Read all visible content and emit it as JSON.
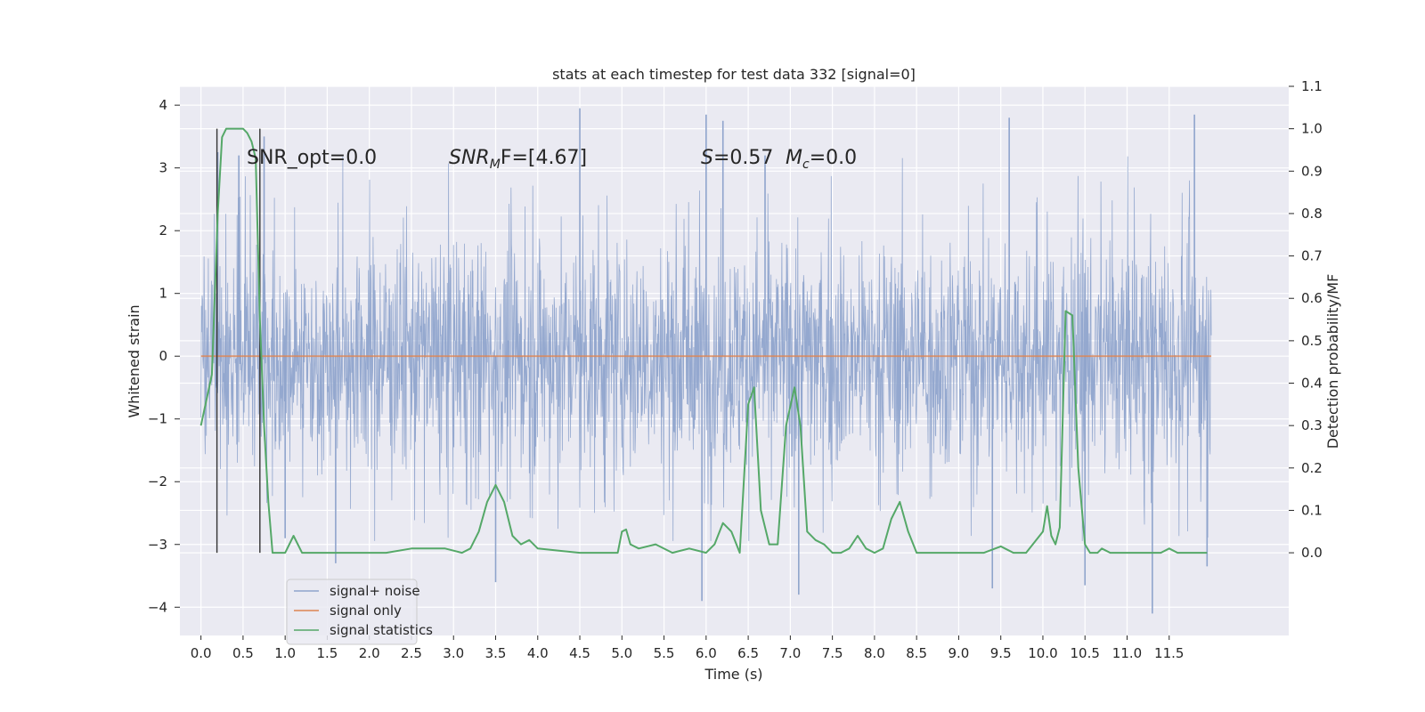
{
  "chart_data": {
    "type": "line",
    "title": "stats at each timestep for test data 332 [signal=0]",
    "xlabel": "Time (s)",
    "ylabel_left": "Whitened strain",
    "ylabel_right": "Detection probability/MF",
    "xlim": [
      -0.25,
      12.92
    ],
    "ylim_left": [
      -4.45,
      4.3
    ],
    "ylim_right": [
      -0.195,
      1.1
    ],
    "x_ticks": [
      "0.0",
      "0.5",
      "1.0",
      "1.5",
      "2.0",
      "2.5",
      "3.0",
      "3.5",
      "4.0",
      "4.5",
      "5.0",
      "5.5",
      "6.0",
      "6.5",
      "7.0",
      "7.5",
      "8.0",
      "8.5",
      "9.0",
      "9.5",
      "10.0",
      "10.5",
      "11.0",
      "11.5"
    ],
    "y_ticks_left": [
      "−4",
      "−3",
      "−2",
      "−1",
      "0",
      "1",
      "2",
      "3",
      "4"
    ],
    "y_ticks_right": [
      "0.0",
      "0.1",
      "0.2",
      "0.3",
      "0.4",
      "0.5",
      "0.6",
      "0.7",
      "0.8",
      "0.9",
      "1.0",
      "1.1"
    ],
    "grid": true,
    "legend_position": "lower-left",
    "colors": {
      "background": "#eaeaf2",
      "grid": "#ffffff",
      "signal_noise": "#8fa4cc",
      "signal_only": "#dd8452",
      "signal_statistics": "#55a868",
      "vlines": "#333333"
    },
    "annotations": {
      "snr_opt": "SNR_opt=0.0",
      "snr_mf_label": "SNR",
      "snr_mf_sub": "M",
      "snr_mf_tail": "F=[4.67]",
      "s_label": "S",
      "s_value": "=0.57",
      "mc_label": "M",
      "mc_sub": "c",
      "mc_value": "=0.0"
    },
    "vertical_lines_x": [
      0.19,
      0.7
    ],
    "series": [
      {
        "name": "signal+ noise",
        "axis": "left",
        "x_range": [
          0.0,
          12.0
        ],
        "envelope_typical": [
          -1.9,
          1.85
        ],
        "extreme_spikes": [
          {
            "x": 0.2,
            "y": 3.25
          },
          {
            "x": 0.45,
            "y": 3.2
          },
          {
            "x": 0.75,
            "y": 3.5
          },
          {
            "x": 1.0,
            "y": -2.9
          },
          {
            "x": 1.6,
            "y": -3.3
          },
          {
            "x": 3.5,
            "y": -3.6
          },
          {
            "x": 4.5,
            "y": 3.95
          },
          {
            "x": 6.0,
            "y": 3.85
          },
          {
            "x": 5.95,
            "y": -3.9
          },
          {
            "x": 6.2,
            "y": 3.75
          },
          {
            "x": 6.7,
            "y": 3.2
          },
          {
            "x": 7.1,
            "y": -3.8
          },
          {
            "x": 9.4,
            "y": -3.7
          },
          {
            "x": 9.6,
            "y": 3.8
          },
          {
            "x": 10.5,
            "y": -3.65
          },
          {
            "x": 11.3,
            "y": -4.1
          },
          {
            "x": 11.8,
            "y": 3.85
          },
          {
            "x": 11.95,
            "y": -3.35
          }
        ]
      },
      {
        "name": "signal only",
        "axis": "left",
        "x": [
          0.0,
          12.0
        ],
        "y": [
          0.0,
          0.0
        ]
      },
      {
        "name": "signal statistics",
        "axis": "right",
        "x": [
          0.0,
          0.13,
          0.2,
          0.25,
          0.3,
          0.4,
          0.5,
          0.55,
          0.6,
          0.65,
          0.7,
          0.75,
          0.8,
          0.85,
          0.9,
          1.0,
          1.1,
          1.2,
          1.3,
          1.5,
          2.0,
          2.2,
          2.5,
          2.9,
          3.1,
          3.2,
          3.3,
          3.4,
          3.5,
          3.6,
          3.7,
          3.8,
          3.9,
          4.0,
          4.5,
          4.95,
          5.0,
          5.05,
          5.1,
          5.2,
          5.4,
          5.6,
          5.8,
          6.0,
          6.1,
          6.2,
          6.3,
          6.4,
          6.5,
          6.57,
          6.65,
          6.75,
          6.85,
          6.95,
          7.05,
          7.12,
          7.2,
          7.3,
          7.4,
          7.5,
          7.6,
          7.7,
          7.8,
          7.9,
          8.0,
          8.1,
          8.2,
          8.3,
          8.4,
          8.5,
          8.6,
          8.7,
          8.8,
          9.0,
          9.3,
          9.5,
          9.55,
          9.65,
          9.8,
          10.0,
          10.05,
          10.1,
          10.15,
          10.2,
          10.27,
          10.35,
          10.42,
          10.5,
          10.56,
          10.6,
          10.65,
          10.7,
          10.8,
          11.0,
          11.4,
          11.5,
          11.6,
          11.8,
          11.95
        ],
        "y": [
          0.3,
          0.42,
          0.8,
          0.98,
          1.0,
          1.0,
          1.0,
          0.99,
          0.97,
          0.93,
          0.55,
          0.3,
          0.12,
          0.0,
          0.0,
          0.0,
          0.04,
          0.0,
          0.0,
          0.0,
          0.0,
          0.0,
          0.01,
          0.01,
          0.0,
          0.01,
          0.05,
          0.12,
          0.16,
          0.12,
          0.04,
          0.02,
          0.03,
          0.01,
          0.0,
          0.0,
          0.05,
          0.055,
          0.02,
          0.01,
          0.02,
          0.0,
          0.01,
          0.0,
          0.02,
          0.07,
          0.05,
          0.0,
          0.35,
          0.39,
          0.1,
          0.02,
          0.02,
          0.3,
          0.39,
          0.3,
          0.05,
          0.03,
          0.02,
          0.0,
          0.0,
          0.01,
          0.04,
          0.01,
          0.0,
          0.01,
          0.08,
          0.12,
          0.05,
          0.0,
          0.0,
          0.0,
          0.0,
          0.0,
          0.0,
          0.015,
          0.01,
          0.0,
          0.0,
          0.05,
          0.11,
          0.04,
          0.02,
          0.06,
          0.57,
          0.56,
          0.2,
          0.02,
          0.0,
          0.0,
          0.0,
          0.01,
          0.0,
          0.0,
          0.0,
          0.01,
          0.0,
          0.0,
          0.0
        ]
      }
    ]
  }
}
